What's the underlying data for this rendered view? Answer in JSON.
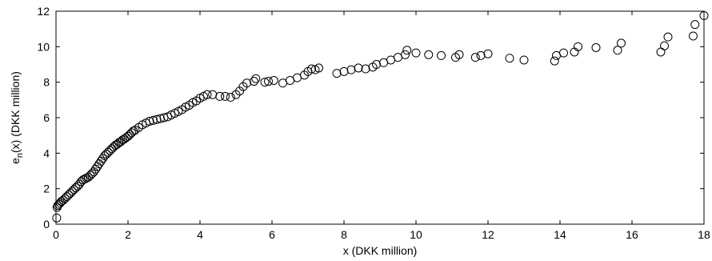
{
  "chart_data": {
    "type": "scatter",
    "title": "",
    "xlabel": "x (DKK million)",
    "ylabel": "e_n(x) (DKK million)",
    "ylabel_parts": {
      "main": "e",
      "sub": "n",
      "rest": "(x) (DKK million)"
    },
    "xlim": [
      0,
      18
    ],
    "ylim": [
      0,
      12
    ],
    "xticks": [
      0,
      2,
      4,
      6,
      8,
      10,
      12,
      14,
      16,
      18
    ],
    "yticks": [
      0,
      2,
      4,
      6,
      8,
      10,
      12
    ],
    "grid": false,
    "marker": "open-circle",
    "points": [
      [
        0.02,
        0.35
      ],
      [
        0.03,
        0.95
      ],
      [
        0.05,
        1.05
      ],
      [
        0.08,
        1.12
      ],
      [
        0.12,
        1.2
      ],
      [
        0.15,
        1.28
      ],
      [
        0.2,
        1.35
      ],
      [
        0.25,
        1.45
      ],
      [
        0.3,
        1.55
      ],
      [
        0.35,
        1.65
      ],
      [
        0.4,
        1.75
      ],
      [
        0.45,
        1.85
      ],
      [
        0.5,
        1.95
      ],
      [
        0.55,
        2.05
      ],
      [
        0.6,
        2.15
      ],
      [
        0.65,
        2.25
      ],
      [
        0.7,
        2.4
      ],
      [
        0.75,
        2.5
      ],
      [
        0.8,
        2.55
      ],
      [
        0.85,
        2.6
      ],
      [
        0.9,
        2.65
      ],
      [
        0.95,
        2.75
      ],
      [
        1.0,
        2.85
      ],
      [
        1.05,
        2.95
      ],
      [
        1.1,
        3.1
      ],
      [
        1.15,
        3.25
      ],
      [
        1.2,
        3.4
      ],
      [
        1.25,
        3.55
      ],
      [
        1.3,
        3.7
      ],
      [
        1.35,
        3.85
      ],
      [
        1.4,
        3.95
      ],
      [
        1.45,
        4.05
      ],
      [
        1.5,
        4.15
      ],
      [
        1.55,
        4.25
      ],
      [
        1.6,
        4.35
      ],
      [
        1.65,
        4.45
      ],
      [
        1.7,
        4.5
      ],
      [
        1.75,
        4.6
      ],
      [
        1.8,
        4.65
      ],
      [
        1.85,
        4.75
      ],
      [
        1.9,
        4.8
      ],
      [
        1.95,
        4.88
      ],
      [
        2.0,
        4.95
      ],
      [
        2.05,
        5.05
      ],
      [
        2.1,
        5.15
      ],
      [
        2.15,
        5.25
      ],
      [
        2.2,
        5.3
      ],
      [
        2.3,
        5.45
      ],
      [
        2.4,
        5.6
      ],
      [
        2.5,
        5.7
      ],
      [
        2.6,
        5.8
      ],
      [
        2.7,
        5.85
      ],
      [
        2.8,
        5.9
      ],
      [
        2.9,
        5.95
      ],
      [
        3.0,
        6.0
      ],
      [
        3.1,
        6.05
      ],
      [
        3.2,
        6.15
      ],
      [
        3.3,
        6.25
      ],
      [
        3.4,
        6.35
      ],
      [
        3.5,
        6.45
      ],
      [
        3.6,
        6.6
      ],
      [
        3.7,
        6.7
      ],
      [
        3.8,
        6.85
      ],
      [
        3.9,
        6.95
      ],
      [
        4.0,
        7.1
      ],
      [
        4.1,
        7.2
      ],
      [
        4.2,
        7.3
      ],
      [
        4.35,
        7.3
      ],
      [
        4.55,
        7.2
      ],
      [
        4.7,
        7.2
      ],
      [
        4.85,
        7.15
      ],
      [
        5.0,
        7.3
      ],
      [
        5.1,
        7.5
      ],
      [
        5.2,
        7.75
      ],
      [
        5.3,
        7.95
      ],
      [
        5.5,
        8.05
      ],
      [
        5.55,
        8.2
      ],
      [
        5.8,
        8.0
      ],
      [
        5.9,
        8.05
      ],
      [
        6.05,
        8.1
      ],
      [
        6.3,
        7.95
      ],
      [
        6.5,
        8.1
      ],
      [
        6.7,
        8.25
      ],
      [
        6.9,
        8.4
      ],
      [
        7.0,
        8.6
      ],
      [
        7.1,
        8.75
      ],
      [
        7.2,
        8.7
      ],
      [
        7.3,
        8.8
      ],
      [
        7.8,
        8.5
      ],
      [
        8.0,
        8.6
      ],
      [
        8.2,
        8.7
      ],
      [
        8.4,
        8.8
      ],
      [
        8.6,
        8.75
      ],
      [
        8.8,
        8.85
      ],
      [
        8.9,
        9.0
      ],
      [
        9.1,
        9.1
      ],
      [
        9.3,
        9.25
      ],
      [
        9.5,
        9.4
      ],
      [
        9.7,
        9.55
      ],
      [
        9.75,
        9.8
      ],
      [
        10.0,
        9.65
      ],
      [
        10.35,
        9.55
      ],
      [
        10.7,
        9.5
      ],
      [
        11.1,
        9.4
      ],
      [
        11.2,
        9.55
      ],
      [
        11.65,
        9.4
      ],
      [
        11.8,
        9.5
      ],
      [
        12.0,
        9.6
      ],
      [
        12.6,
        9.35
      ],
      [
        13.0,
        9.25
      ],
      [
        13.85,
        9.2
      ],
      [
        13.9,
        9.5
      ],
      [
        14.1,
        9.65
      ],
      [
        14.4,
        9.7
      ],
      [
        14.5,
        10.0
      ],
      [
        15.0,
        9.95
      ],
      [
        15.6,
        9.8
      ],
      [
        15.7,
        10.2
      ],
      [
        16.8,
        9.7
      ],
      [
        16.9,
        10.05
      ],
      [
        17.0,
        10.55
      ],
      [
        17.7,
        10.6
      ],
      [
        17.75,
        11.25
      ],
      [
        18.0,
        11.75
      ]
    ]
  }
}
